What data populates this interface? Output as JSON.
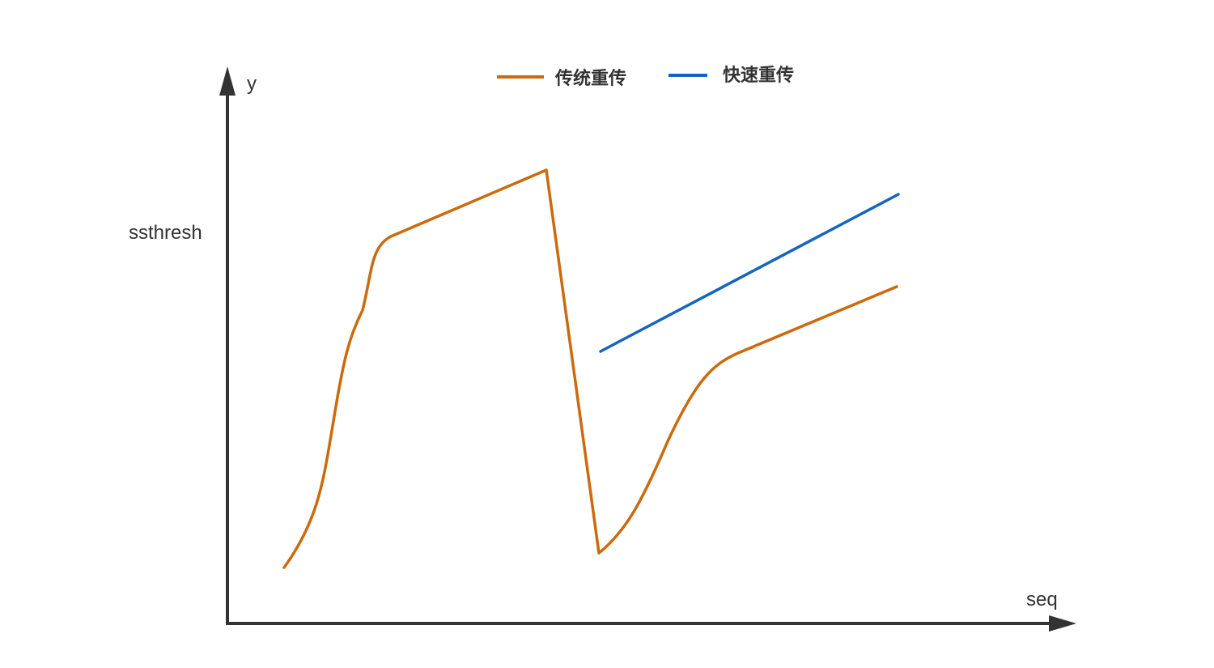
{
  "axes": {
    "y_label": "y",
    "x_label": "seq",
    "y_tick_label": "ssthresh"
  },
  "legend": [
    {
      "label": "传统重传",
      "color": "#cc6a0c"
    },
    {
      "label": "快速重传",
      "color": "#1565c0"
    }
  ],
  "colors": {
    "axis": "#333333",
    "traditional": "#cc6a0c",
    "fast": "#1565c0"
  }
}
